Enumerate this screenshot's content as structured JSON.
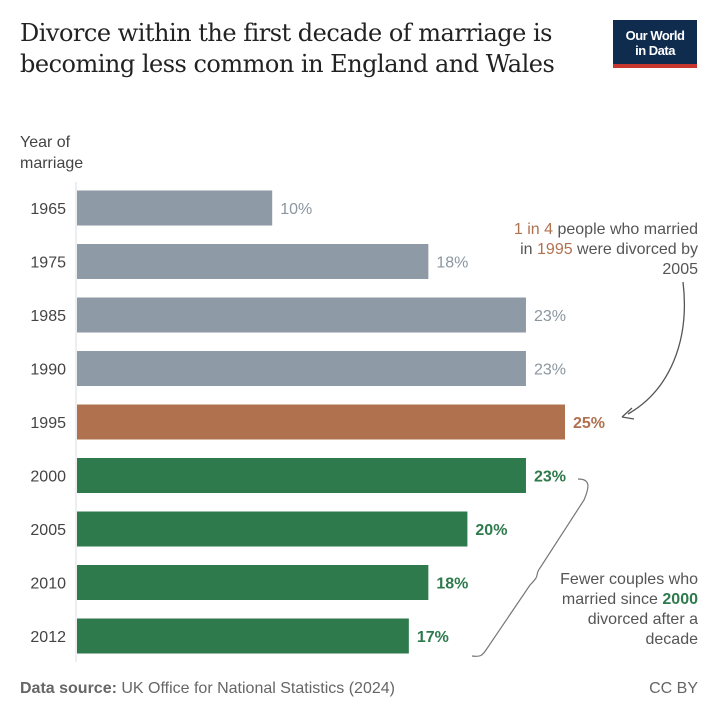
{
  "chart_data": {
    "type": "bar",
    "orientation": "horizontal",
    "title": "Divorce within the first decade of marriage is becoming less common in England and Wales",
    "ylabel": "Year of marriage",
    "categories": [
      "1965",
      "1975",
      "1985",
      "1990",
      "1995",
      "2000",
      "2005",
      "2010",
      "2012"
    ],
    "values": [
      10,
      18,
      23,
      23,
      25,
      23,
      20,
      18,
      17
    ],
    "value_labels": [
      "10%",
      "18%",
      "23%",
      "23%",
      "25%",
      "23%",
      "20%",
      "18%",
      "17%"
    ],
    "unit": "%",
    "xlim": [
      0,
      25
    ],
    "grid": false,
    "colors": {
      "early": "#8e9aa5",
      "highlight": "#b0714f",
      "recent": "#2e7a4c"
    },
    "color_groups": [
      "early",
      "early",
      "early",
      "early",
      "highlight",
      "recent",
      "recent",
      "recent",
      "recent"
    ],
    "annotations": {
      "highlight": {
        "part1": "1 in 4",
        "part2": " people who married in ",
        "part3": "1995",
        "part4": " were divorced by 2005"
      },
      "recent": {
        "part1": "Fewer couples who married since ",
        "part2": "2000",
        "part3": " divorced after a decade"
      }
    }
  },
  "logo": {
    "line1": "Our World",
    "line2": "in Data"
  },
  "footer": {
    "source_label": "Data source:",
    "source": " UK Office for National Statistics (2024)",
    "license": "CC BY"
  }
}
